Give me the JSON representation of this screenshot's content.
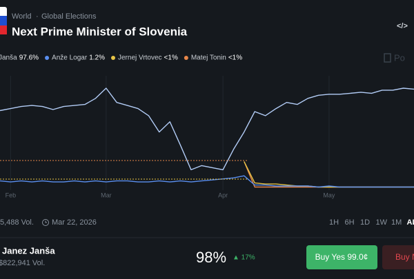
{
  "header": {
    "breadcrumb": [
      "World",
      "Global Elections"
    ],
    "title": "Next Prime Minister of Slovenia",
    "watermark": "Po"
  },
  "chart": {
    "type": "line",
    "categories": [
      null,
      "Feb",
      null,
      null,
      null,
      null,
      null,
      null,
      null,
      null,
      "Mar",
      null,
      null,
      null,
      null,
      null,
      null,
      null,
      null,
      null,
      null,
      "Apr",
      null,
      null,
      null,
      null,
      null,
      null,
      null,
      null,
      null,
      "May",
      null,
      null,
      null,
      null,
      null,
      null,
      null,
      null
    ],
    "ylim": [
      0,
      100
    ],
    "series": [
      {
        "name": "Janša",
        "legend_value": "97.6%",
        "color": "#b3cdf7",
        "values": [
          76,
          78,
          80,
          81,
          80,
          77,
          80,
          81,
          82,
          88,
          98,
          84,
          81,
          78,
          71,
          55,
          65,
          42,
          18,
          22,
          20,
          18,
          38,
          55,
          75,
          71,
          78,
          84,
          82,
          88,
          91,
          92,
          92,
          93,
          94,
          93,
          96,
          96,
          98,
          97
        ]
      },
      {
        "name": "Anže Logar",
        "legend_value": "1.2%",
        "color": "#5a8ff0",
        "values": [
          7,
          6,
          7,
          6,
          7,
          6,
          6,
          7,
          6,
          7,
          6,
          7,
          7,
          6,
          6,
          7,
          6,
          7,
          6,
          7,
          8,
          9,
          10,
          12,
          3,
          3,
          2,
          2,
          2,
          2,
          1,
          2,
          1,
          1,
          1,
          1,
          1,
          1,
          1,
          1
        ]
      },
      {
        "name": "Jernej Vrtovec",
        "legend_value": "<1%",
        "color": "#e8c547",
        "values": [
          null,
          null,
          null,
          null,
          null,
          null,
          null,
          null,
          null,
          null,
          null,
          null,
          null,
          null,
          null,
          null,
          null,
          null,
          null,
          null,
          null,
          null,
          null,
          26,
          5,
          4,
          4,
          3,
          2,
          2,
          1,
          1,
          1,
          1,
          1,
          1,
          1,
          1,
          1,
          1
        ]
      },
      {
        "name": "Matej Tonin",
        "legend_value": "<1%",
        "color": "#e8874a",
        "values": [
          null,
          null,
          null,
          null,
          null,
          null,
          null,
          null,
          null,
          null,
          null,
          null,
          null,
          null,
          null,
          null,
          null,
          null,
          null,
          null,
          null,
          null,
          null,
          26,
          1,
          1,
          1,
          1,
          1,
          1,
          1,
          1,
          1,
          1,
          1,
          1,
          1,
          1,
          1,
          1
        ]
      }
    ]
  },
  "toolbar": {
    "volume": "5,488 Vol.",
    "date": "Mar 22, 2026",
    "ranges": [
      "1H",
      "6H",
      "1D",
      "1W",
      "1M",
      "ALL"
    ]
  },
  "outcome": {
    "name": "Janez Janša",
    "volume": "$822,941 Vol.",
    "chance": "98%",
    "change": "▲ 17%",
    "buy_yes": "Buy Yes 99.0¢",
    "buy_no": "Buy No"
  }
}
